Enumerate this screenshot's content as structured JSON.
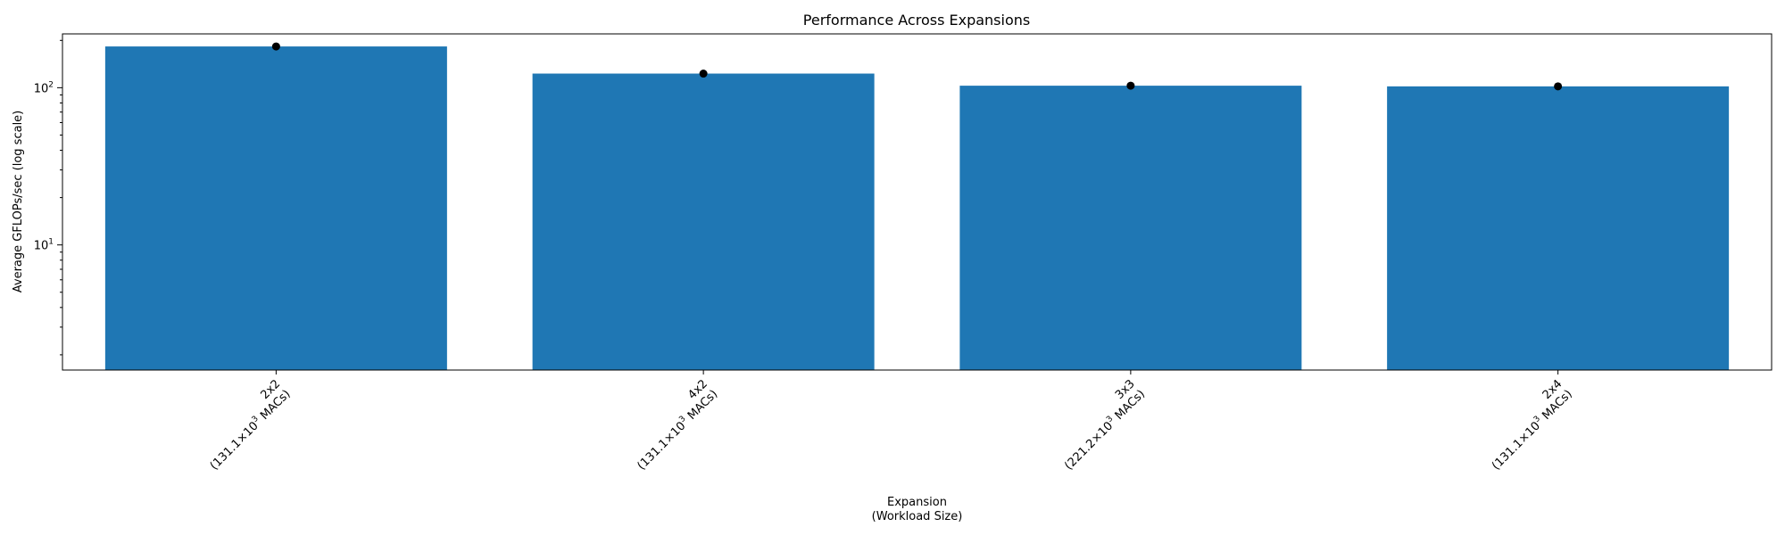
{
  "chart_data": {
    "type": "bar",
    "title": "Performance Across Expansions",
    "xlabel_lines": [
      "Expansion",
      "(Workload Size)"
    ],
    "ylabel": "Average GFLOPs/sec (log scale)",
    "yscale": "log",
    "ylim": [
      1.6,
      220
    ],
    "y_major_ticks": [
      {
        "value": 10,
        "label_base": "10",
        "label_exp": "1"
      },
      {
        "value": 100,
        "label_base": "10",
        "label_exp": "2"
      }
    ],
    "categories": [
      {
        "name": "2x2",
        "workload_prefix": "(131.1×10",
        "workload_exp": "3",
        "workload_suffix": " MACs)"
      },
      {
        "name": "4x2",
        "workload_prefix": "(131.1×10",
        "workload_exp": "3",
        "workload_suffix": " MACs)"
      },
      {
        "name": "3x3",
        "workload_prefix": "(221.2×10",
        "workload_exp": "3",
        "workload_suffix": " MACs)"
      },
      {
        "name": "2x4",
        "workload_prefix": "(131.1×10",
        "workload_exp": "3",
        "workload_suffix": " MACs)"
      }
    ],
    "values": [
      183,
      123,
      103,
      102
    ],
    "markers": [
      183,
      123,
      103,
      102
    ],
    "bar_color": "#1f77b4",
    "marker_color": "#000000",
    "grid": false
  }
}
